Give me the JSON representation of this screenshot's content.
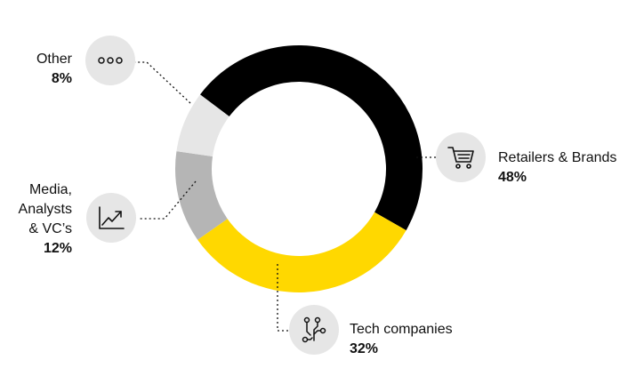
{
  "chart_data": {
    "type": "pie",
    "categories": [
      "Retailers & Brands",
      "Tech companies",
      "Media, Analysts & VC’s",
      "Other"
    ],
    "values": [
      48,
      32,
      12,
      8
    ],
    "colors": [
      "#000000",
      "#ffd800",
      "#b5b5b5",
      "#e6e6e6"
    ],
    "icons": [
      "cart-icon",
      "circuit-icon",
      "trend-chart-icon",
      "more-icon"
    ],
    "labels": [
      {
        "name": "Retailers & Brands",
        "pct": "48%"
      },
      {
        "name": "Tech companies",
        "pct": "32%"
      },
      {
        "name": "Media,\nAnalysts\n& VC’s",
        "pct": "12%"
      },
      {
        "name": "Other",
        "pct": "8%"
      }
    ]
  }
}
